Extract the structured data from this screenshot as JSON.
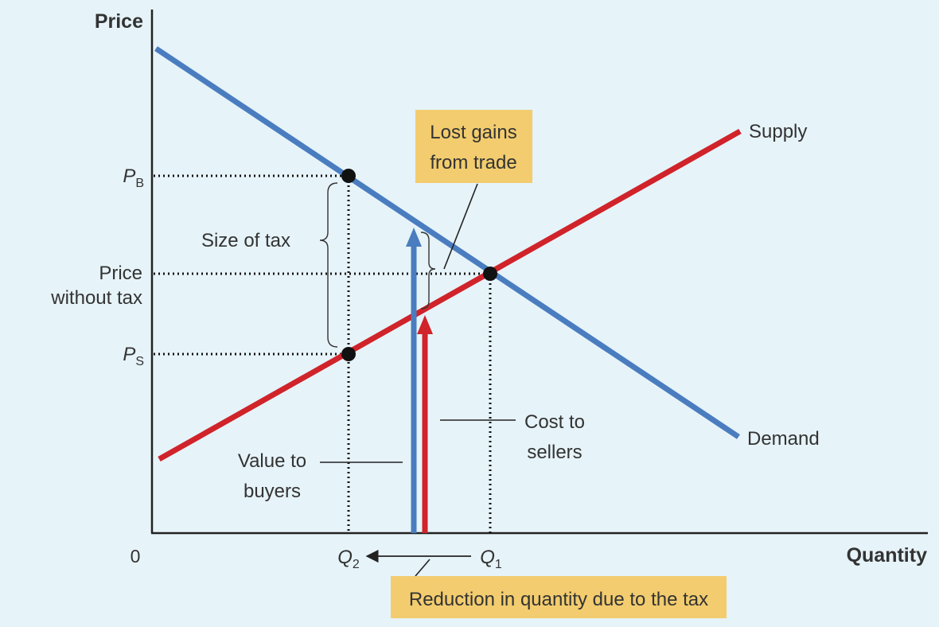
{
  "colors": {
    "background": "#e6f3f9",
    "demand": "#4a7dbf",
    "supply": "#d0232a",
    "callout": "#f2cc6e",
    "axis": "#222222",
    "text": "#333333"
  },
  "axes": {
    "y_title": "Price",
    "x_title": "Quantity",
    "origin": "0"
  },
  "price_labels": {
    "pb_letter": "P",
    "pb_sub": "B",
    "ps_letter": "P",
    "ps_sub": "S",
    "no_tax_line1": "Price",
    "no_tax_line2": "without tax"
  },
  "quantity_labels": {
    "q2_letter": "Q",
    "q2_sub": "2",
    "q1_letter": "Q",
    "q1_sub": "1"
  },
  "curves": {
    "supply": "Supply",
    "demand": "Demand"
  },
  "annotations": {
    "size_of_tax": "Size of tax",
    "lost_gains_line1": "Lost gains",
    "lost_gains_line2": "from trade",
    "value_line1": "Value to",
    "value_line2": "buyers",
    "cost_line1": "Cost to",
    "cost_line2": "sellers",
    "reduction": "Reduction in quantity due to the tax"
  }
}
